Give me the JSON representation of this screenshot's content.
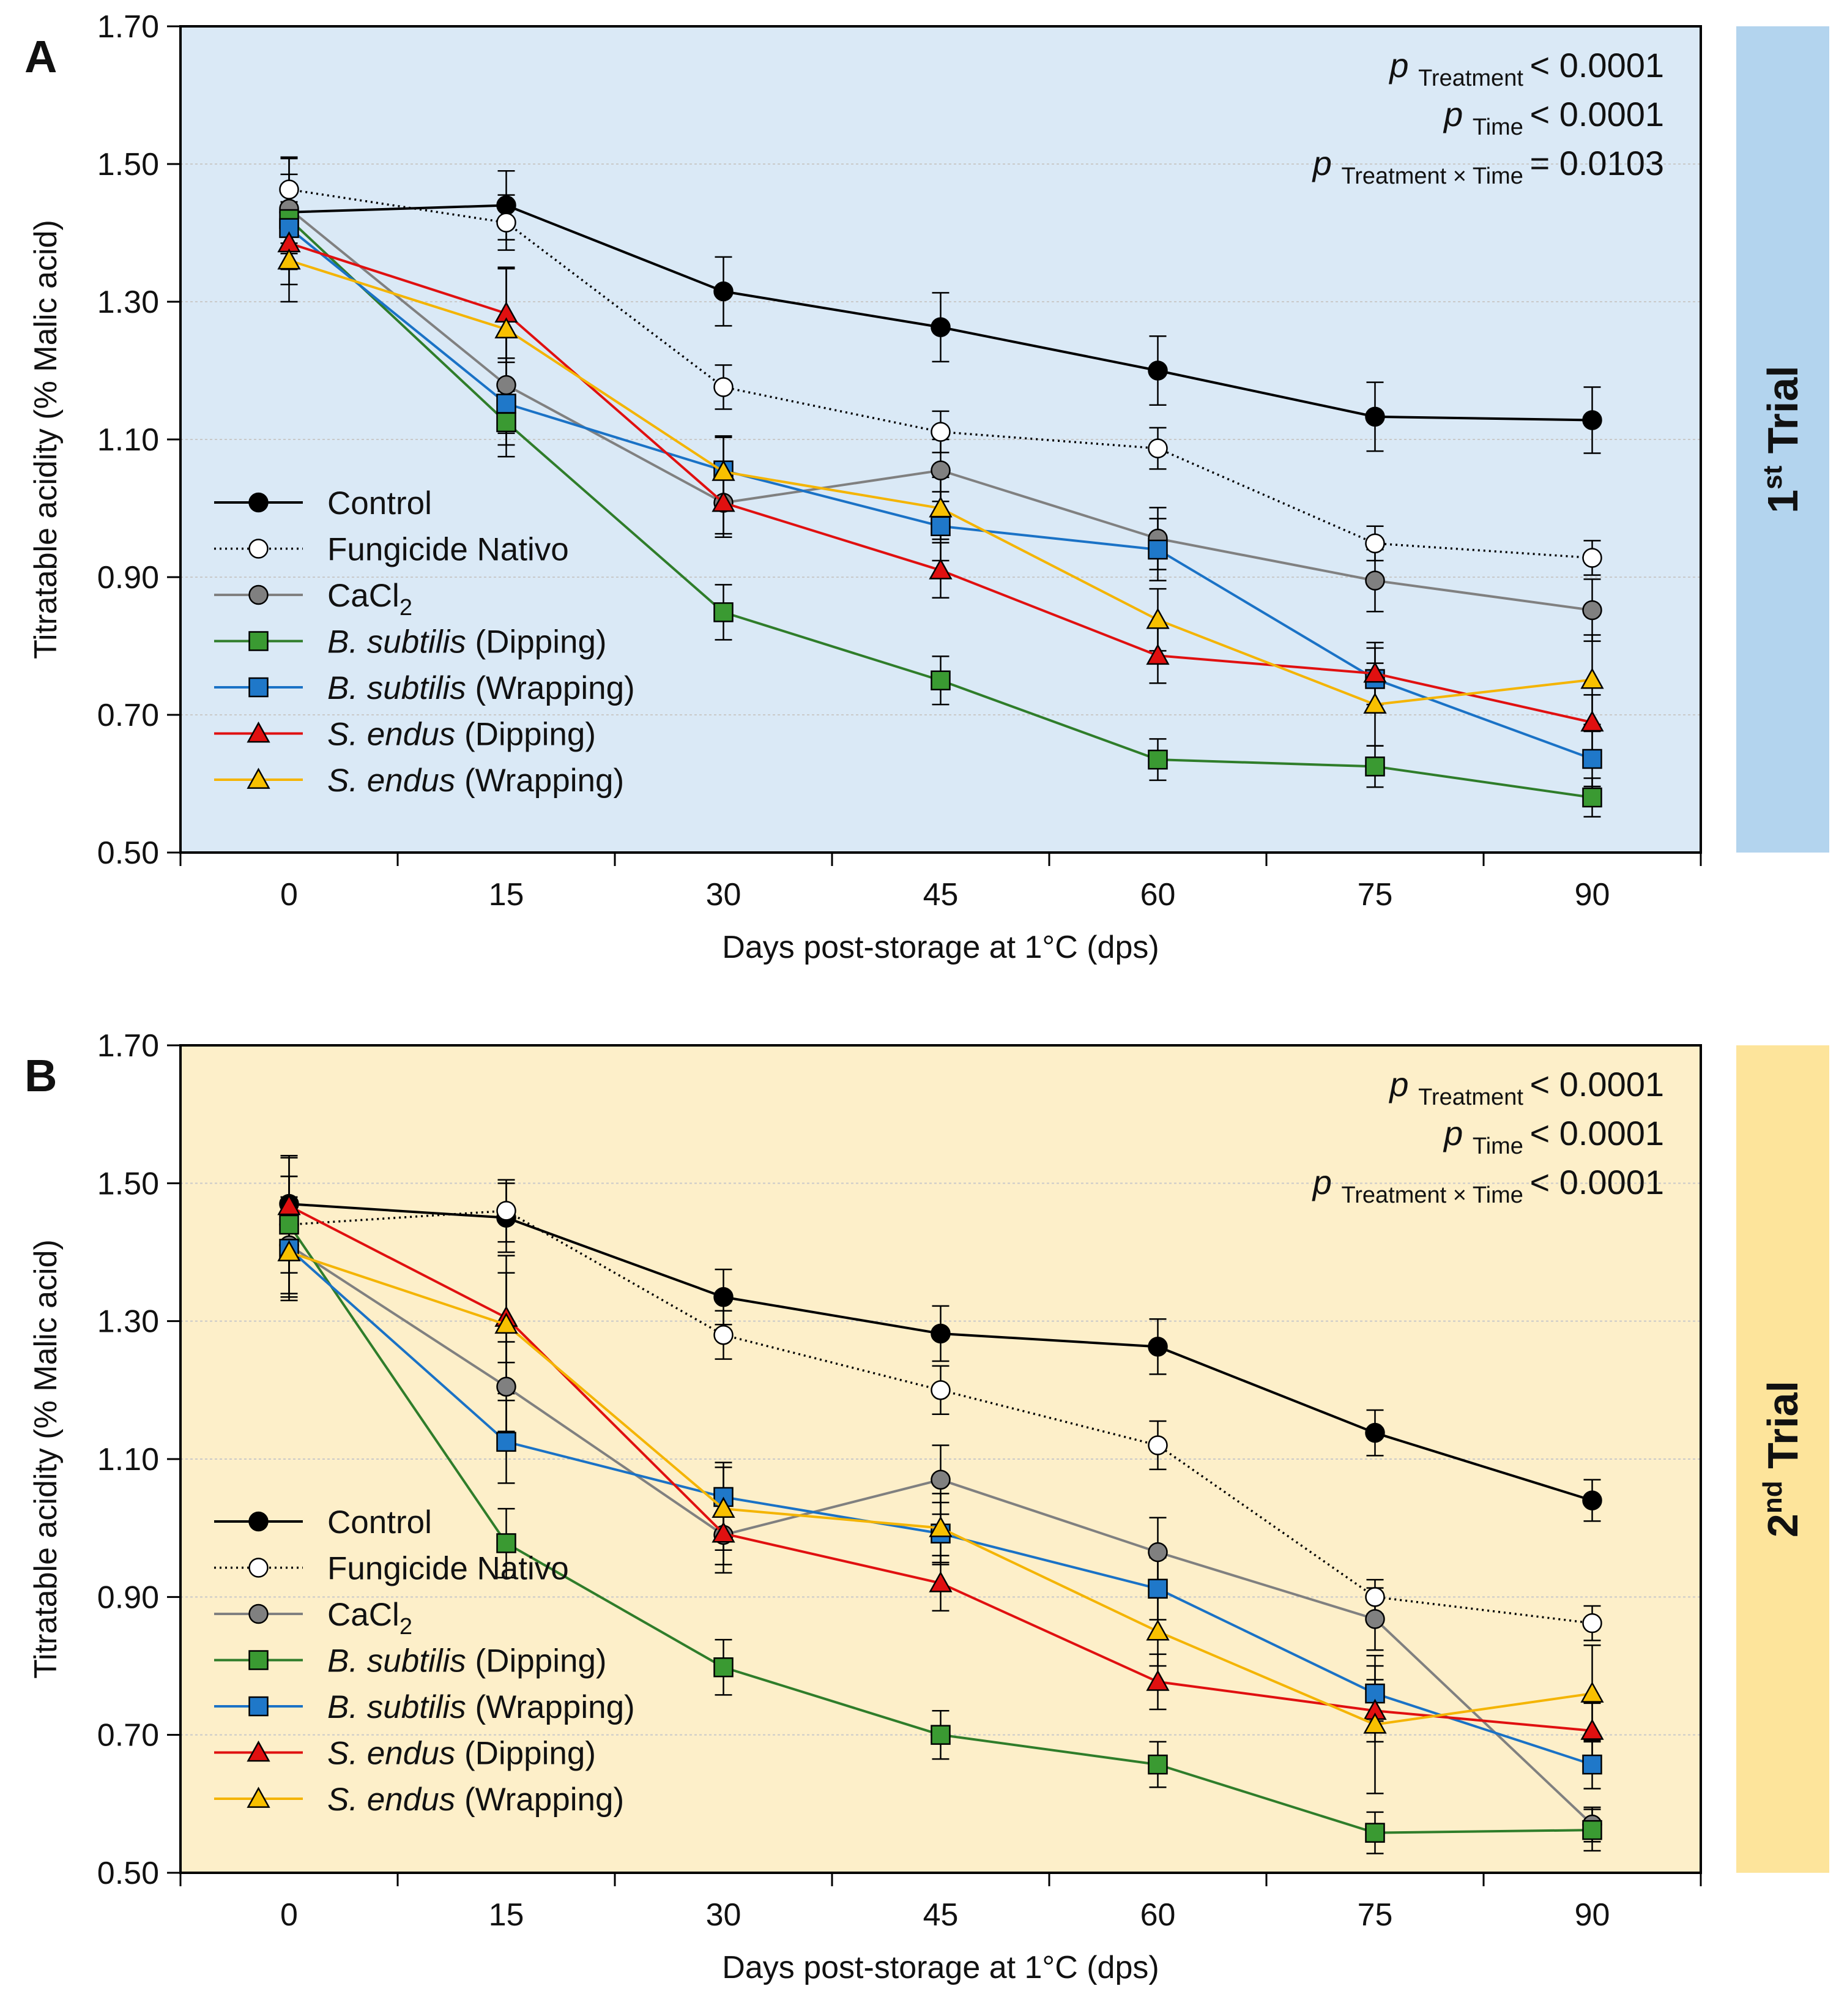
{
  "chart_data": [
    {
      "panel": "A",
      "type": "line",
      "trial_label": "1st Trial",
      "trial_number": "1",
      "trial_suffix": "st",
      "trial_word": "Trial",
      "background": "#dae9f6",
      "band_color": "#b3d4ee",
      "xlabel": "Days post-storage at 1°C (dps)",
      "ylabel": "Titratable acidity (% Malic acid)",
      "x": [
        0,
        15,
        30,
        45,
        60,
        75,
        90
      ],
      "x_ticks": [
        "0",
        "15",
        "30",
        "45",
        "60",
        "75",
        "90"
      ],
      "xlim": [
        -7.5,
        97.5
      ],
      "ylim": [
        0.5,
        1.7
      ],
      "y_ticks": [
        "0.50",
        "0.70",
        "0.90",
        "1.10",
        "1.30",
        "1.50",
        "1.70"
      ],
      "grid": true,
      "legend_position": "lower-left",
      "stats": [
        {
          "p": "p",
          "sub": "Treatment",
          "value": "< 0.0001"
        },
        {
          "p": "p",
          "sub": "Time",
          "value": "< 0.0001"
        },
        {
          "p": "p",
          "sub": "Treatment × Time",
          "value": "= 0.0103"
        }
      ],
      "series": [
        {
          "name": "Control",
          "color": "#000000",
          "fill": "#000000",
          "marker": "circle",
          "dash": false,
          "values": [
            1.43,
            1.44,
            1.315,
            1.263,
            1.2,
            1.133,
            1.128
          ],
          "errors": [
            0.08,
            0.05,
            0.05,
            0.05,
            0.05,
            0.05,
            0.048
          ]
        },
        {
          "name": "Fungicide Nativo",
          "color": "#000000",
          "fill": "#ffffff",
          "marker": "circle",
          "dash": true,
          "values": [
            1.463,
            1.415,
            1.176,
            1.111,
            1.087,
            0.949,
            0.928
          ],
          "errors": [
            0.045,
            0.04,
            0.032,
            0.03,
            0.03,
            0.025,
            0.025
          ]
        },
        {
          "name": "CaCl",
          "name_sub": "2",
          "color": "#808080",
          "fill": "#808080",
          "marker": "circle",
          "dash": false,
          "values": [
            1.435,
            1.179,
            1.008,
            1.055,
            0.956,
            0.895,
            0.852
          ],
          "errors": [
            0.05,
            0.07,
            0.05,
            0.045,
            0.045,
            0.045,
            0.045
          ]
        },
        {
          "name_italic": "B. subtilis",
          "name_rest": " (Dipping)",
          "color": "#2f7d2a",
          "fill": "#3a9a32",
          "marker": "square",
          "dash": false,
          "values": [
            1.42,
            1.125,
            0.849,
            0.75,
            0.635,
            0.625,
            0.58
          ],
          "errors": [
            0.05,
            0.05,
            0.04,
            0.035,
            0.03,
            0.03,
            0.028
          ]
        },
        {
          "name_italic": "B. subtilis",
          "name_rest": " (Wrapping)",
          "color": "#1a72c6",
          "fill": "#1f78c9",
          "marker": "square",
          "dash": false,
          "values": [
            1.407,
            1.152,
            1.055,
            0.974,
            0.94,
            0.752,
            0.636
          ],
          "errors": [
            0.06,
            0.06,
            0.05,
            0.05,
            0.045,
            0.045,
            0.04
          ]
        },
        {
          "name_italic": "S. endus",
          "name_rest": " (Dipping)",
          "color": "#e01010",
          "fill": "#e01010",
          "marker": "triangle",
          "dash": false,
          "values": [
            1.385,
            1.283,
            1.008,
            0.91,
            0.786,
            0.76,
            0.689
          ],
          "errors": [
            0.06,
            0.065,
            0.045,
            0.04,
            0.04,
            0.045,
            0.04
          ]
        },
        {
          "name_italic": "S. endus",
          "name_rest": " (Wrapping)",
          "color": "#f4b400",
          "fill": "#f8c000",
          "marker": "triangle",
          "dash": false,
          "values": [
            1.36,
            1.26,
            1.053,
            1.0,
            0.838,
            0.715,
            0.751
          ],
          "errors": [
            0.06,
            0.09,
            0.05,
            0.045,
            0.045,
            0.06,
            0.065
          ]
        }
      ]
    },
    {
      "panel": "B",
      "type": "line",
      "trial_label": "2nd Trial",
      "trial_number": "2",
      "trial_suffix": "nd",
      "trial_word": "Trial",
      "background": "#fdefc9",
      "band_color": "#fde49b",
      "xlabel": "Days post-storage at 1°C (dps)",
      "ylabel": "Titratable acidity (% Malic acid)",
      "x": [
        0,
        15,
        30,
        45,
        60,
        75,
        90
      ],
      "x_ticks": [
        "0",
        "15",
        "30",
        "45",
        "60",
        "75",
        "90"
      ],
      "xlim": [
        -7.5,
        97.5
      ],
      "ylim": [
        0.5,
        1.7
      ],
      "y_ticks": [
        "0.50",
        "0.70",
        "0.90",
        "1.10",
        "1.30",
        "1.50",
        "1.70"
      ],
      "grid": true,
      "legend_position": "lower-left",
      "stats": [
        {
          "p": "p",
          "sub": "Treatment",
          "value": "< 0.0001"
        },
        {
          "p": "p",
          "sub": "Time",
          "value": "< 0.0001"
        },
        {
          "p": "p",
          "sub": "Treatment × Time",
          "value": "< 0.0001"
        }
      ],
      "series": [
        {
          "name": "Control",
          "color": "#000000",
          "fill": "#000000",
          "marker": "circle",
          "dash": false,
          "values": [
            1.47,
            1.45,
            1.335,
            1.282,
            1.263,
            1.138,
            1.04
          ],
          "errors": [
            0.07,
            0.05,
            0.04,
            0.04,
            0.04,
            0.033,
            0.03
          ]
        },
        {
          "name": "Fungicide Nativo",
          "color": "#000000",
          "fill": "#ffffff",
          "marker": "circle",
          "dash": true,
          "values": [
            1.44,
            1.46,
            1.28,
            1.2,
            1.12,
            0.9,
            0.862
          ],
          "errors": [
            0.07,
            0.045,
            0.035,
            0.035,
            0.035,
            0.025,
            0.025
          ]
        },
        {
          "name": "CaCl",
          "name_sub": "2",
          "color": "#808080",
          "fill": "#808080",
          "marker": "circle",
          "dash": false,
          "values": [
            1.41,
            1.205,
            0.99,
            1.07,
            0.965,
            0.868,
            0.57
          ],
          "errors": [
            0.07,
            0.065,
            0.055,
            0.05,
            0.05,
            0.045,
            0.025
          ]
        },
        {
          "name_italic": "B. subtilis",
          "name_rest": " (Dipping)",
          "color": "#2f7d2a",
          "fill": "#3a9a32",
          "marker": "square",
          "dash": false,
          "values": [
            1.44,
            0.978,
            0.798,
            0.7,
            0.657,
            0.558,
            0.562
          ],
          "errors": [
            0.07,
            0.05,
            0.04,
            0.035,
            0.033,
            0.03,
            0.03
          ]
        },
        {
          "name_italic": "B. subtilis",
          "name_rest": " (Wrapping)",
          "color": "#1a72c6",
          "fill": "#1f78c9",
          "marker": "square",
          "dash": false,
          "values": [
            1.405,
            1.125,
            1.045,
            0.992,
            0.912,
            0.76,
            0.657
          ],
          "errors": [
            0.07,
            0.06,
            0.05,
            0.045,
            0.045,
            0.04,
            0.035
          ]
        },
        {
          "name_italic": "S. endus",
          "name_rest": " (Dipping)",
          "color": "#e01010",
          "fill": "#e01010",
          "marker": "triangle",
          "dash": false,
          "values": [
            1.467,
            1.305,
            0.992,
            0.92,
            0.777,
            0.735,
            0.706
          ],
          "errors": [
            0.07,
            0.065,
            0.045,
            0.04,
            0.04,
            0.045,
            0.04
          ]
        },
        {
          "name_italic": "S. endus",
          "name_rest": " (Wrapping)",
          "color": "#f4b400",
          "fill": "#f8c000",
          "marker": "triangle",
          "dash": false,
          "values": [
            1.4,
            1.295,
            1.028,
            1.0,
            0.85,
            0.715,
            0.76
          ],
          "errors": [
            0.07,
            0.1,
            0.06,
            0.05,
            0.05,
            0.1,
            0.07
          ]
        }
      ]
    }
  ]
}
